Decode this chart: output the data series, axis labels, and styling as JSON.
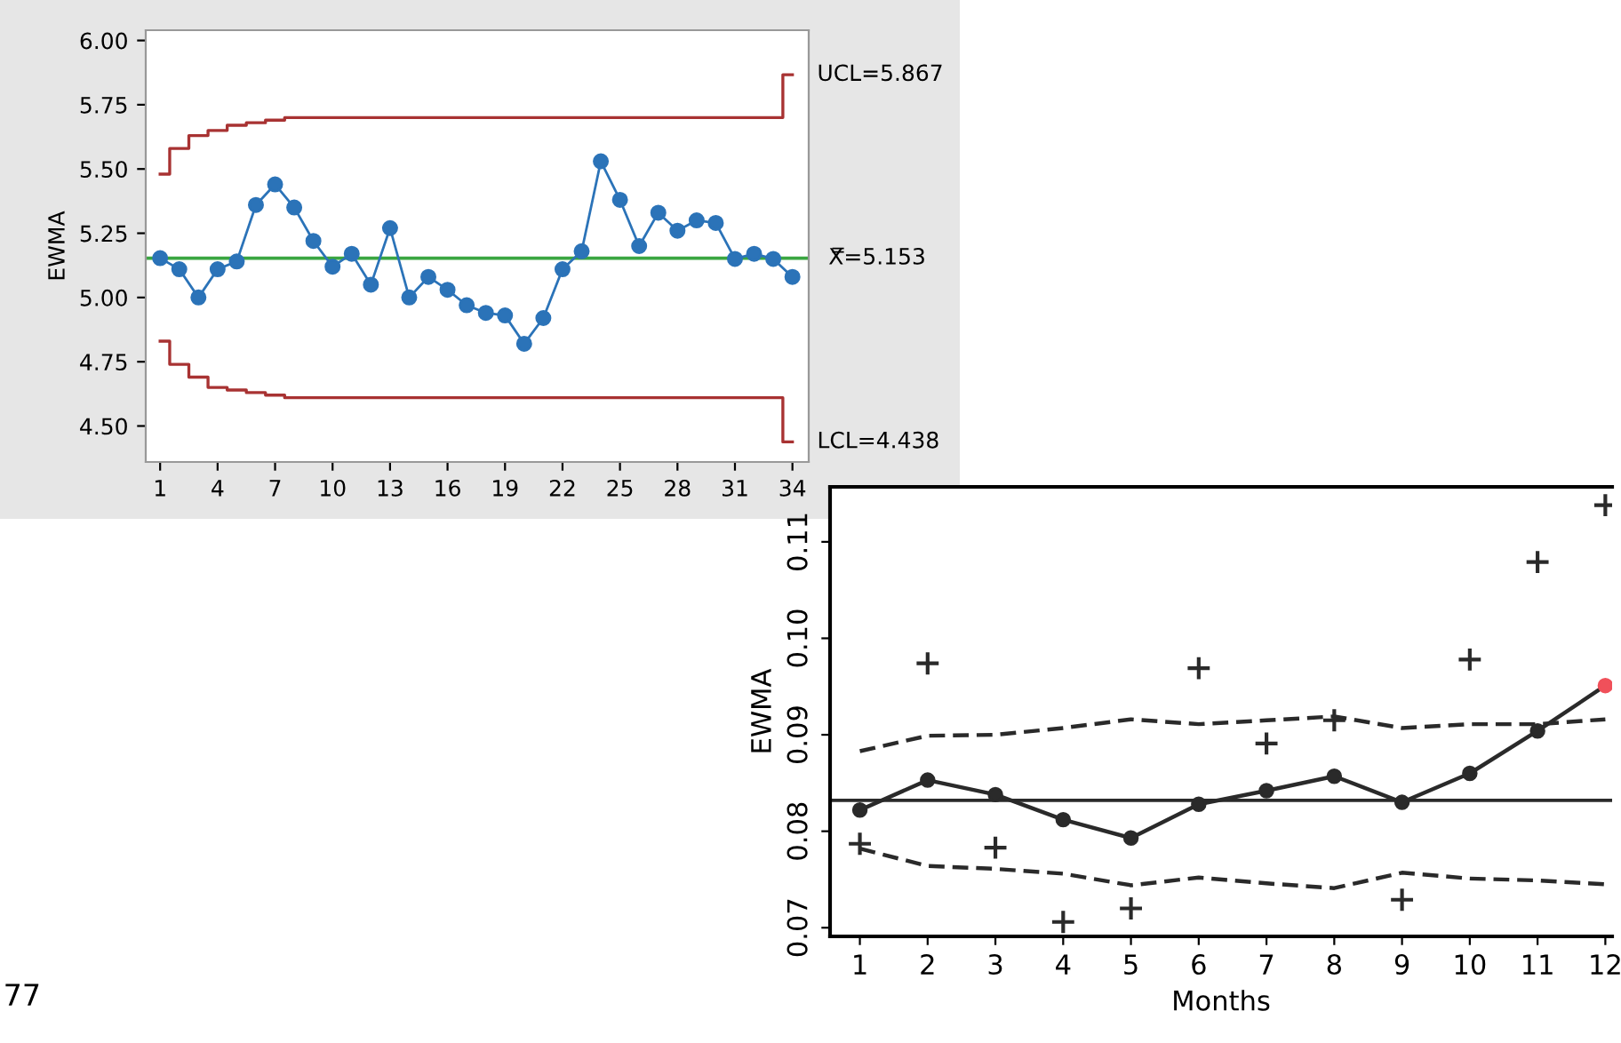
{
  "chart_data": [
    {
      "type": "line",
      "ylabel": "EWMA",
      "x": [
        1,
        2,
        3,
        4,
        5,
        6,
        7,
        8,
        9,
        10,
        11,
        12,
        13,
        14,
        15,
        16,
        17,
        18,
        19,
        20,
        21,
        22,
        23,
        24,
        25,
        26,
        27,
        28,
        29,
        30,
        31,
        32,
        33,
        34
      ],
      "xlim": [
        0.25,
        34.85
      ],
      "ylim": [
        4.36,
        6.04
      ],
      "xticks": [
        1,
        4,
        7,
        10,
        13,
        16,
        19,
        22,
        25,
        28,
        31,
        34
      ],
      "yticks": [
        {
          "value": 4.5,
          "label": "4.50"
        },
        {
          "value": 4.75,
          "label": "4.75"
        },
        {
          "value": 5.0,
          "label": "5.00"
        },
        {
          "value": 5.25,
          "label": "5.25"
        },
        {
          "value": 5.5,
          "label": "5.50"
        },
        {
          "value": 5.75,
          "label": "5.75"
        },
        {
          "value": 6.0,
          "label": "6.00"
        }
      ],
      "grid": false,
      "legend": false,
      "marker": "circle",
      "line_style": "solid",
      "series": [
        {
          "color": "#2b73b8",
          "values": [
            5.153,
            5.11,
            5.0,
            5.11,
            5.14,
            5.36,
            5.44,
            5.35,
            5.22,
            5.12,
            5.17,
            5.05,
            5.27,
            5.0,
            5.08,
            5.03,
            4.97,
            4.94,
            4.93,
            4.82,
            4.92,
            5.11,
            5.18,
            5.53,
            5.38,
            5.2,
            5.33,
            5.26,
            5.3,
            5.29,
            5.15,
            5.17,
            5.15,
            5.08
          ]
        },
        {
          "name": "UCL=5.867",
          "type": "step",
          "marker": "none",
          "color": "#a83232",
          "values": [
            5.48,
            5.58,
            5.63,
            5.65,
            5.67,
            5.68,
            5.69,
            5.7,
            5.7,
            5.7,
            5.7,
            5.7,
            5.7,
            5.7,
            5.7,
            5.7,
            5.7,
            5.7,
            5.7,
            5.7,
            5.7,
            5.7,
            5.7,
            5.7,
            5.7,
            5.7,
            5.7,
            5.7,
            5.7,
            5.7,
            5.7,
            5.7,
            5.7,
            5.867
          ]
        },
        {
          "name": "LCL=4.438",
          "type": "step",
          "marker": "none",
          "color": "#a83232",
          "values": [
            4.83,
            4.74,
            4.69,
            4.65,
            4.64,
            4.63,
            4.62,
            4.61,
            4.61,
            4.61,
            4.61,
            4.61,
            4.61,
            4.61,
            4.61,
            4.61,
            4.61,
            4.61,
            4.61,
            4.61,
            4.61,
            4.61,
            4.61,
            4.61,
            4.61,
            4.61,
            4.61,
            4.61,
            4.61,
            4.61,
            4.61,
            4.61,
            4.61,
            4.438
          ]
        }
      ],
      "ref_lines": [
        {
          "axis": "y",
          "value": 5.153,
          "label": "X̿=5.153",
          "color": "#3aa641"
        }
      ]
    },
    {
      "type": "line",
      "ylabel": "EWMA",
      "xlabel": "Months",
      "x": [
        1,
        2,
        3,
        4,
        5,
        6,
        7,
        8,
        9,
        10,
        11,
        12
      ],
      "xlim": [
        0.56,
        12.1
      ],
      "ylim": [
        0.0691,
        0.1157
      ],
      "xticks": [
        1,
        2,
        3,
        4,
        5,
        6,
        7,
        8,
        9,
        10,
        11,
        12
      ],
      "yticks": [
        0.07,
        0.08,
        0.09,
        {
          "value": 0.1,
          "label": "0.10"
        },
        0.11
      ],
      "grid": false,
      "legend": false,
      "marker": "circle",
      "line_style": "solid",
      "series": [
        {
          "color": "#2a2a2a",
          "colors": [
            "#2a2a2a",
            "#2a2a2a",
            "#2a2a2a",
            "#2a2a2a",
            "#2a2a2a",
            "#2a2a2a",
            "#2a2a2a",
            "#2a2a2a",
            "#2a2a2a",
            "#2a2a2a",
            "#2a2a2a",
            "#f0505a"
          ],
          "values": [
            0.0822,
            0.0853,
            0.0838,
            0.0812,
            0.0793,
            0.0828,
            0.0842,
            0.0857,
            0.083,
            0.086,
            0.0904,
            0.0951
          ]
        },
        {
          "type": "scatter",
          "marker": "cross",
          "color": "#2a2a2a",
          "values": [
            0.0787,
            0.0974,
            0.0783,
            0.0706,
            0.072,
            0.0969,
            0.0891,
            0.0915,
            0.0729,
            0.0978,
            0.1079,
            0.1138
          ]
        },
        {
          "marker": "none",
          "line_style": "dashed",
          "color": "#2a2a2a",
          "values": [
            0.0883,
            0.0899,
            0.09,
            0.0907,
            0.0916,
            0.0911,
            0.0915,
            0.0919,
            0.0907,
            0.0911,
            0.0911,
            0.0916
          ]
        },
        {
          "marker": "none",
          "line_style": "dashed",
          "color": "#2a2a2a",
          "values": [
            0.0782,
            0.0764,
            0.0761,
            0.0756,
            0.0744,
            0.0752,
            0.0746,
            0.0741,
            0.0757,
            0.0751,
            0.0749,
            0.0745
          ]
        }
      ],
      "ref_lines": [
        {
          "axis": "y",
          "value": 0.0832,
          "color": "#2a2a2a"
        }
      ],
      "annotations": [
        "77"
      ]
    }
  ]
}
